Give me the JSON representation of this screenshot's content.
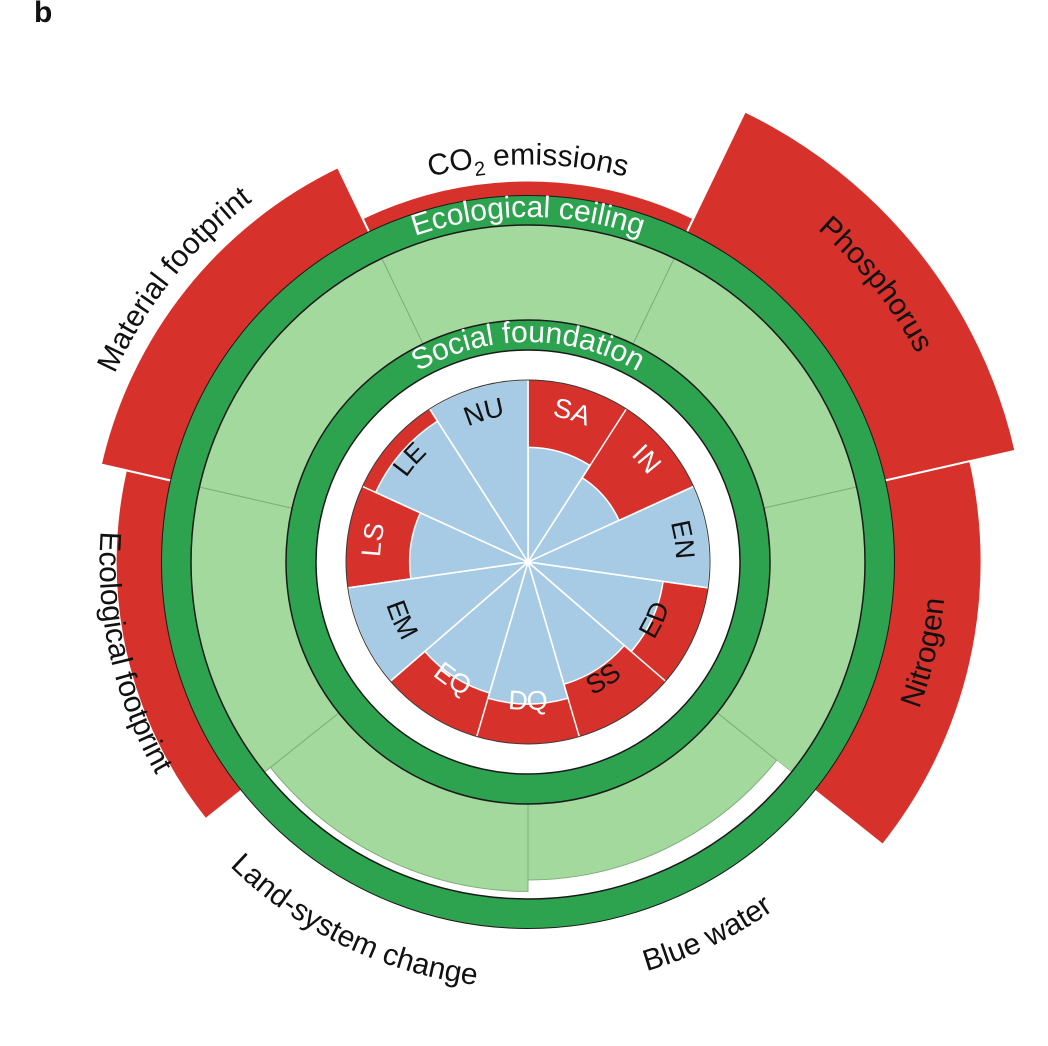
{
  "panel_letter": "b",
  "colors": {
    "overshoot": "#d7312b",
    "shortfall": "#d7312b",
    "ring": "#2ea34f",
    "safe_space": "#a3d99c",
    "social_fill": "#a7cbe4",
    "white": "#ffffff",
    "outline": "#1a1a1a"
  },
  "labels": {
    "ecological_ceiling": "Ecological ceiling",
    "social_foundation": "Social foundation"
  },
  "chart_data": {
    "type": "doughnut",
    "ecological": [
      {
        "label": "CO₂ emissions",
        "label_base": "CO",
        "label_sub": "2",
        "label_rest": " emissions",
        "overshoot": 1.15,
        "label_color": "dark"
      },
      {
        "label": "Phosphorus",
        "overshoot": 2.3,
        "label_color": "light"
      },
      {
        "label": "Nitrogen",
        "overshoot": 1.85,
        "label_color": "light"
      },
      {
        "label": "Blue water",
        "overshoot": 0.8,
        "label_color": "dark"
      },
      {
        "label": "Land-system change",
        "overshoot": 0.92,
        "label_color": "dark"
      },
      {
        "label": "Ecological footprint",
        "overshoot": 1.45,
        "label_color": "dark"
      },
      {
        "label": "Material footprint",
        "overshoot": 1.7,
        "label_color": "dark"
      }
    ],
    "social": [
      {
        "code": "SA",
        "achievement": 0.63,
        "label_color": "light"
      },
      {
        "code": "IN",
        "achievement": 0.55,
        "label_color": "light"
      },
      {
        "code": "EN",
        "achievement": 1.0,
        "label_color": "dark"
      },
      {
        "code": "ED",
        "achievement": 0.75,
        "label_color": "dark"
      },
      {
        "code": "SS",
        "achievement": 0.7,
        "label_color": "dark"
      },
      {
        "code": "DQ",
        "achievement": 0.78,
        "label_color": "light"
      },
      {
        "code": "EQ",
        "achievement": 0.75,
        "label_color": "light"
      },
      {
        "code": "EM",
        "achievement": 1.0,
        "label_color": "dark"
      },
      {
        "code": "LS",
        "achievement": 0.65,
        "label_color": "light"
      },
      {
        "code": "LE",
        "achievement": 0.92,
        "label_color": "dark"
      },
      {
        "code": "NU",
        "achievement": 1.0,
        "label_color": "dark"
      }
    ]
  }
}
